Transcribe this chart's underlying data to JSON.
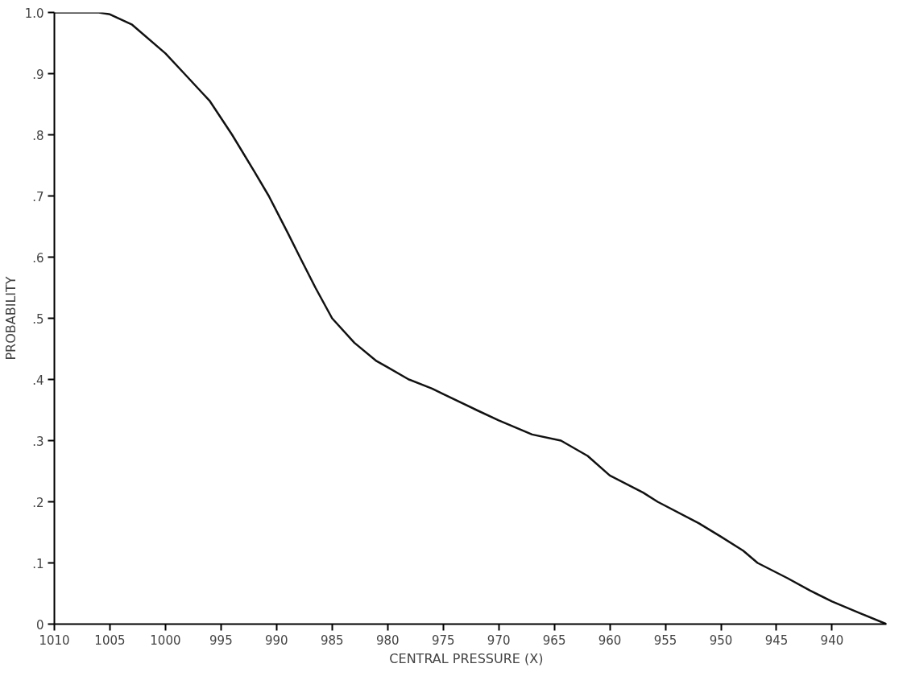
{
  "chart_data": {
    "type": "line",
    "xlabel": "CENTRAL PRESSURE   (X)",
    "ylabel": "PROBABILITY",
    "x": [
      1010,
      1006,
      1005,
      1003,
      1000,
      998.3,
      996,
      994,
      992,
      990.7,
      989,
      987.9,
      986.5,
      985,
      983,
      981,
      980,
      978.1,
      976,
      975,
      972,
      970,
      967,
      964.4,
      962,
      960,
      957,
      955.7,
      952,
      950,
      948,
      946.7,
      944,
      942,
      940,
      937.5,
      935.1
    ],
    "series": [
      {
        "color": "#111111",
        "values": [
          1.0,
          1.0,
          0.997,
          0.98,
          0.933,
          0.9,
          0.855,
          0.8,
          0.74,
          0.7,
          0.64,
          0.6,
          0.55,
          0.5,
          0.46,
          0.43,
          0.42,
          0.4,
          0.385,
          0.376,
          0.35,
          0.333,
          0.31,
          0.3,
          0.275,
          0.243,
          0.215,
          0.2,
          0.165,
          0.143,
          0.12,
          0.1,
          0.075,
          0.055,
          0.037,
          0.018,
          0.0
        ]
      }
    ],
    "xlim": [
      1010,
      935.1
    ],
    "ylim": [
      0,
      1.0
    ],
    "xticks": [
      1010,
      1005,
      1000,
      995,
      990,
      985,
      980,
      975,
      970,
      965,
      960,
      955,
      950,
      945,
      940
    ],
    "yticks": [
      0,
      {
        "value": 0.1,
        "label": ".1"
      },
      {
        "value": 0.2,
        "label": ".2"
      },
      {
        "value": 0.3,
        "label": ".3"
      },
      {
        "value": 0.4,
        "label": ".4"
      },
      {
        "value": 0.5,
        "label": ".5"
      },
      {
        "value": 0.6,
        "label": ".6"
      },
      {
        "value": 0.7,
        "label": ".7"
      },
      {
        "value": 0.8,
        "label": ".8"
      },
      {
        "value": 0.9,
        "label": ".9"
      },
      {
        "value": 1.0,
        "label": "1.0"
      }
    ],
    "marker": "none",
    "line_style": "solid"
  }
}
